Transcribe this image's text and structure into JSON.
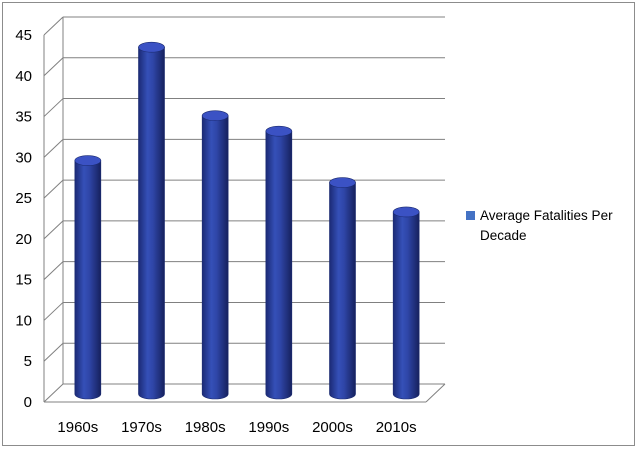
{
  "chart_data": {
    "type": "bar",
    "categories": [
      "1960s",
      "1970s",
      "1980s",
      "1990s",
      "2000s",
      "2010s"
    ],
    "series": [
      {
        "name": "Average Fatalities Per Decade",
        "values": [
          28.5,
          42.4,
          34.0,
          32.1,
          25.8,
          22.2
        ]
      }
    ],
    "ylim": [
      0,
      45
    ],
    "yticks": [
      "0",
      "5",
      "10",
      "15",
      "20",
      "25",
      "30",
      "35",
      "40",
      "45"
    ],
    "grid": true,
    "legend_position": "right",
    "colors": {
      "bar": "#2A3F9E",
      "bar_top": "#3B52C4",
      "grid": "#808080",
      "legend": "#4472C4"
    }
  }
}
